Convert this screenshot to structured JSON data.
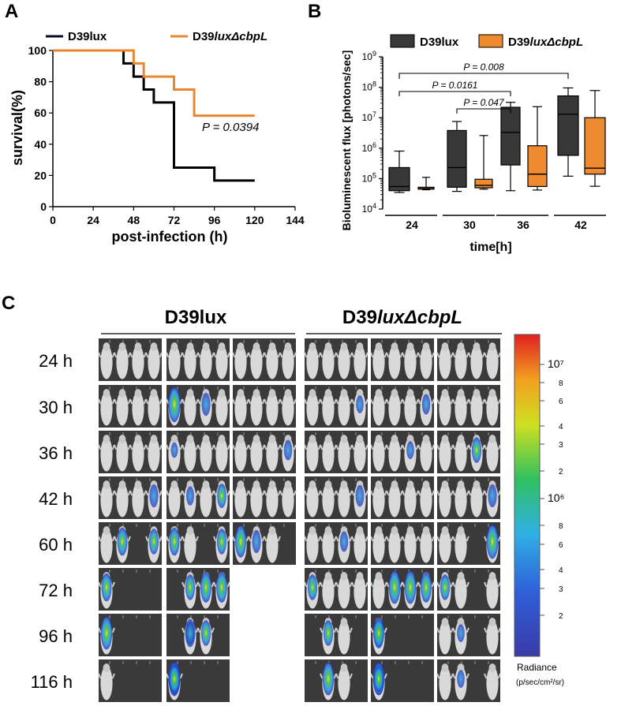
{
  "panels": {
    "a": "A",
    "b": "B",
    "c": "C"
  },
  "colors": {
    "wt": "#000000",
    "mut": "#E8872E",
    "box_wt": "#383838",
    "box_mut": "#EE8A2F",
    "photo_bg": "#3a3a3a",
    "mouse": "#d9d9d9"
  },
  "chart_data": [
    {
      "id": "A",
      "type": "line",
      "step": true,
      "title": "",
      "xlabel": "post-infection (h)",
      "ylabel": "survival(%)",
      "xlim": [
        0,
        144
      ],
      "ylim": [
        0,
        100
      ],
      "xticks": [
        "0",
        "24",
        "48",
        "72",
        "96",
        "120",
        "144"
      ],
      "yticks": [
        "0",
        "20",
        "40",
        "60",
        "80",
        "100"
      ],
      "legend": [
        {
          "name_base": "D39lux",
          "name_italic": "",
          "color": "#000000"
        },
        {
          "name_base": "D39",
          "name_italic": "luxΔcbpL",
          "color": "#E8872E"
        }
      ],
      "series": [
        {
          "name": "D39lux",
          "x": [
            0,
            42,
            48,
            54,
            60,
            72,
            96,
            120
          ],
          "y": [
            100,
            91.7,
            83.3,
            75,
            66.7,
            25,
            16.7,
            16.7
          ]
        },
        {
          "name": "D39luxΔcbpL",
          "x": [
            0,
            48,
            54,
            72,
            84,
            120
          ],
          "y": [
            100,
            91.7,
            83.3,
            75,
            58.3,
            58.3
          ]
        }
      ],
      "annotation": {
        "text": "P = 0.0394"
      }
    },
    {
      "id": "B",
      "type": "box",
      "xlabel": "time[h]",
      "ylabel": "Bioluminescent flux [photons/sec]",
      "yscale": "log",
      "ylim_exp": [
        4,
        9
      ],
      "ytick_base": "10",
      "ytick_exps": [
        "4",
        "5",
        "6",
        "7",
        "8",
        "9"
      ],
      "categories": [
        "24",
        "30",
        "36",
        "42"
      ],
      "legend": [
        {
          "name_base": "D39lux",
          "name_italic": "",
          "color": "#383838"
        },
        {
          "name_base": "D39",
          "name_italic": "luxΔcbpL",
          "color": "#EE8A2F"
        }
      ],
      "series": [
        {
          "name": "D39lux",
          "boxes": [
            {
              "min": 35000,
              "q1": 40000,
              "median": 55000,
              "q3": 230000,
              "max": 800000
            },
            {
              "min": 38000,
              "q1": 52000,
              "median": 230000,
              "q3": 3800000,
              "max": 7500000
            },
            {
              "min": 40000,
              "q1": 280000,
              "median": 3300000,
              "q3": 22000000,
              "max": 32000000
            },
            {
              "min": 120000,
              "q1": 580000,
              "median": 13000000,
              "q3": 52000000,
              "max": 95000000
            }
          ]
        },
        {
          "name": "D39luxΔcbpL",
          "boxes": [
            {
              "min": 43000,
              "q1": 45000,
              "median": 47000,
              "q3": 52000,
              "max": 110000
            },
            {
              "min": 45000,
              "q1": 50000,
              "median": 60000,
              "q3": 95000,
              "max": 2600000
            },
            {
              "min": 42000,
              "q1": 55000,
              "median": 140000,
              "q3": 1200000,
              "max": 23000000
            },
            {
              "min": 56000,
              "q1": 140000,
              "median": 220000,
              "q3": 10000000,
              "max": 78000000
            }
          ]
        }
      ],
      "brackets": [
        {
          "from": "24",
          "to": "42",
          "text": "P = 0.008"
        },
        {
          "from": "24",
          "to": "36",
          "text": "P = 0.0161"
        },
        {
          "from": "30",
          "to": "36",
          "text": "P = 0.047"
        }
      ]
    }
  ],
  "panel_c": {
    "group1": {
      "base": "D39lux",
      "italic": ""
    },
    "group2": {
      "base": "D39",
      "italic": "luxΔcbpL"
    },
    "rows": [
      "24 h",
      "30 h",
      "36 h",
      "42 h",
      "60 h",
      "72 h",
      "96 h",
      "116 h"
    ],
    "mice_counts": [
      [
        4,
        4,
        4,
        4,
        4,
        4
      ],
      [
        4,
        4,
        4,
        4,
        4,
        4
      ],
      [
        4,
        4,
        4,
        4,
        4,
        4
      ],
      [
        4,
        4,
        4,
        4,
        4,
        4
      ],
      [
        3,
        3,
        3,
        4,
        4,
        3
      ],
      [
        1,
        3,
        0,
        4,
        4,
        3
      ],
      [
        1,
        2,
        0,
        2,
        1,
        3
      ],
      [
        1,
        1,
        0,
        2,
        1,
        3
      ]
    ],
    "signals": [
      [
        1,
        0.0,
        1
      ],
      [
        1,
        2,
        0.5
      ],
      [
        3,
        3,
        0.3
      ],
      [
        4,
        3,
        0.4
      ],
      [
        1,
        0,
        0.2
      ],
      [
        2,
        3,
        0.4
      ],
      [
        4,
        2,
        0.3
      ],
      [
        5,
        2,
        0.6
      ],
      [
        0,
        3,
        0.5
      ],
      [
        1,
        3,
        0.55
      ],
      [
        1,
        1,
        0.35
      ],
      [
        3,
        3,
        0.45
      ],
      [
        5,
        3,
        0.5
      ],
      [
        0,
        1,
        0.7
      ],
      [
        0,
        2,
        0.6
      ],
      [
        1,
        2,
        0.6
      ],
      [
        1,
        3,
        0.7
      ],
      [
        2,
        1,
        0.5
      ],
      [
        2,
        3,
        0.85
      ],
      [
        3,
        2,
        0.4
      ],
      [
        5,
        2,
        0.95
      ],
      [
        0,
        2,
        0.7
      ],
      [
        1,
        0,
        0.6
      ],
      [
        1,
        1,
        0.8
      ],
      [
        1,
        2,
        0.8
      ],
      [
        2,
        0,
        0.7
      ],
      [
        2,
        2,
        0.95
      ],
      [
        3,
        0,
        0.6
      ],
      [
        4,
        1,
        0.9
      ],
      [
        4,
        2,
        0.9
      ],
      [
        4,
        3,
        0.8
      ],
      [
        5,
        3,
        0.6
      ],
      [
        0,
        2,
        0.9
      ],
      [
        1,
        0,
        0.7
      ],
      [
        1,
        1,
        0.6
      ],
      [
        1,
        2,
        0.5
      ],
      [
        2,
        0,
        0.95
      ],
      [
        2,
        2,
        0.95
      ],
      [
        3,
        0,
        0.6
      ],
      [
        4,
        0,
        0.5
      ],
      [
        4,
        1,
        0.7
      ],
      [
        4,
        2,
        0.8
      ],
      [
        5,
        1,
        0.3
      ],
      [
        1,
        1,
        0.95
      ],
      [
        1,
        2,
        0.9
      ],
      [
        3,
        0,
        0.9
      ],
      [
        4,
        1,
        0.85
      ],
      [
        4,
        2,
        0.9
      ],
      [
        4,
        3,
        0.6
      ],
      [
        5,
        1,
        0.3
      ],
      [
        1,
        1,
        0.7
      ]
    ],
    "colorbar": {
      "ticks": [
        "10⁷",
        "8",
        "6",
        "4",
        "3",
        "2",
        "10⁶",
        "8",
        "6",
        "4",
        "3",
        "2"
      ],
      "label1": "Radiance",
      "label2": "(p/sec/cm²/sr)"
    }
  }
}
